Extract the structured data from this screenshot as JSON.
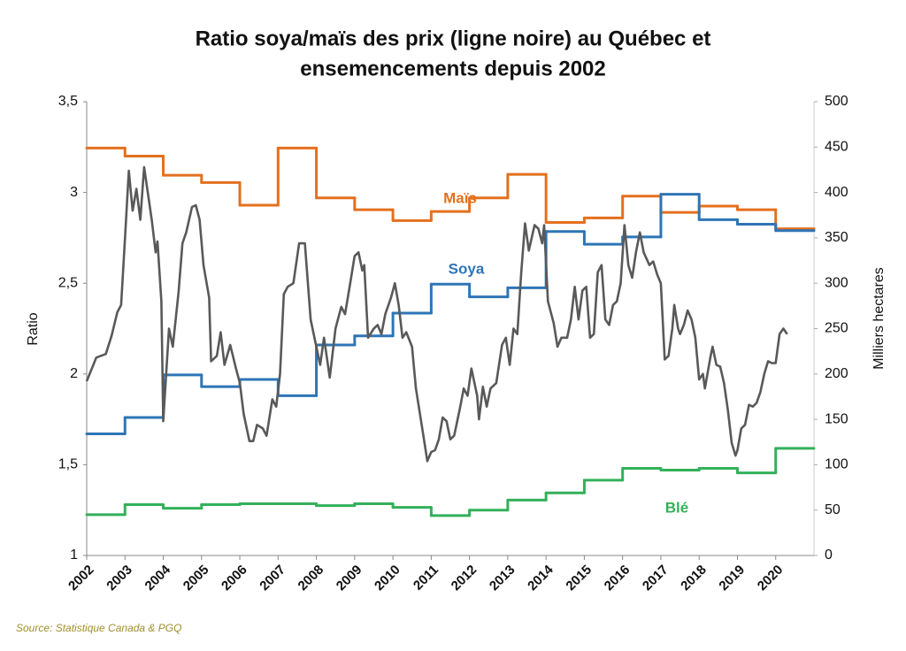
{
  "chart_data": {
    "type": "line",
    "title": [
      "Ratio soya/maïs des prix (ligne noire) au Québec et",
      "ensemencements depuis 2002"
    ],
    "y_label": "Ratio",
    "y2_label": "Milliers hectares",
    "source": "Source: Statistique Canada & PGQ",
    "xlim": [
      2002,
      2021
    ],
    "xticks": [
      2002,
      2003,
      2004,
      2005,
      2006,
      2007,
      2008,
      2009,
      2010,
      2011,
      2012,
      2013,
      2014,
      2015,
      2016,
      2017,
      2018,
      2019,
      2020
    ],
    "ylim": [
      1,
      3.5
    ],
    "yticks": [
      1,
      {
        "value": 1.5,
        "label": "1,5"
      },
      2,
      {
        "value": 2.5,
        "label": "2,5"
      },
      3,
      {
        "value": 3.5,
        "label": "3,5"
      }
    ],
    "y2lim": [
      0,
      500
    ],
    "y2ticks": [
      0,
      50,
      100,
      150,
      200,
      250,
      300,
      350,
      400,
      450,
      500
    ],
    "grid": false,
    "series": [
      {
        "color": "#595959",
        "x": [
          2002.0,
          2002.25,
          2002.5,
          2002.65,
          2002.8,
          2002.9,
          2003.0,
          2003.1,
          2003.2,
          2003.3,
          2003.4,
          2003.5,
          2003.7,
          2003.8,
          2003.85,
          2003.95,
          2004.0,
          2004.15,
          2004.25,
          2004.4,
          2004.5,
          2004.6,
          2004.75,
          2004.85,
          2004.95,
          2005.05,
          2005.2,
          2005.25,
          2005.4,
          2005.5,
          2005.6,
          2005.75,
          2005.9,
          2006.0,
          2006.1,
          2006.25,
          2006.35,
          2006.45,
          2006.6,
          2006.7,
          2006.85,
          2006.95,
          2007.05,
          2007.15,
          2007.25,
          2007.4,
          2007.55,
          2007.7,
          2007.85,
          2007.95,
          2008.1,
          2008.2,
          2008.35,
          2008.5,
          2008.65,
          2008.75,
          2008.9,
          2009.0,
          2009.1,
          2009.2,
          2009.25,
          2009.35,
          2009.5,
          2009.6,
          2009.7,
          2009.8,
          2009.95,
          2010.05,
          2010.15,
          2010.25,
          2010.35,
          2010.5,
          2010.6,
          2010.75,
          2010.9,
          2011.0,
          2011.1,
          2011.2,
          2011.3,
          2011.4,
          2011.5,
          2011.6,
          2011.75,
          2011.85,
          2011.95,
          2012.05,
          2012.2,
          2012.25,
          2012.35,
          2012.45,
          2012.55,
          2012.7,
          2012.85,
          2012.95,
          2013.05,
          2013.15,
          2013.25,
          2013.35,
          2013.45,
          2013.55,
          2013.7,
          2013.8,
          2013.9,
          2013.95,
          2014.05,
          2014.2,
          2014.3,
          2014.4,
          2014.55,
          2014.65,
          2014.75,
          2014.85,
          2014.95,
          2015.05,
          2015.15,
          2015.25,
          2015.35,
          2015.45,
          2015.55,
          2015.65,
          2015.75,
          2015.85,
          2015.95,
          2016.05,
          2016.15,
          2016.25,
          2016.35,
          2016.45,
          2016.55,
          2016.7,
          2016.8,
          2016.9,
          2017.0,
          2017.1,
          2017.2,
          2017.3,
          2017.35,
          2017.45,
          2017.5,
          2017.6,
          2017.7,
          2017.8,
          2017.9,
          2018.0,
          2018.1,
          2018.15,
          2018.3,
          2018.35,
          2018.45,
          2018.55,
          2018.65,
          2018.75,
          2018.85,
          2018.95,
          2019.0,
          2019.1,
          2019.2,
          2019.3,
          2019.4,
          2019.5,
          2019.6,
          2019.7,
          2019.8,
          2019.9,
          2020.0,
          2020.1,
          2020.2,
          2020.3
        ],
        "values": [
          1.96,
          2.09,
          2.11,
          2.21,
          2.34,
          2.38,
          2.75,
          3.12,
          2.9,
          3.02,
          2.85,
          3.14,
          2.85,
          2.67,
          2.73,
          2.4,
          1.74,
          2.25,
          2.15,
          2.45,
          2.72,
          2.78,
          2.92,
          2.93,
          2.85,
          2.6,
          2.42,
          2.07,
          2.1,
          2.23,
          2.05,
          2.16,
          2.03,
          1.95,
          1.78,
          1.63,
          1.63,
          1.72,
          1.7,
          1.66,
          1.86,
          1.82,
          2.0,
          2.44,
          2.48,
          2.5,
          2.72,
          2.72,
          2.3,
          2.2,
          2.05,
          2.2,
          1.98,
          2.25,
          2.37,
          2.33,
          2.52,
          2.65,
          2.67,
          2.57,
          2.6,
          2.2,
          2.25,
          2.27,
          2.22,
          2.33,
          2.42,
          2.5,
          2.38,
          2.2,
          2.23,
          2.15,
          1.92,
          1.72,
          1.52,
          1.57,
          1.58,
          1.64,
          1.76,
          1.74,
          1.64,
          1.66,
          1.81,
          1.92,
          1.88,
          2.03,
          1.88,
          1.75,
          1.93,
          1.82,
          1.92,
          1.95,
          2.16,
          2.2,
          2.05,
          2.25,
          2.22,
          2.55,
          2.83,
          2.68,
          2.82,
          2.8,
          2.72,
          2.82,
          2.4,
          2.28,
          2.15,
          2.2,
          2.2,
          2.3,
          2.48,
          2.3,
          2.46,
          2.48,
          2.2,
          2.22,
          2.56,
          2.6,
          2.3,
          2.27,
          2.38,
          2.4,
          2.5,
          2.82,
          2.6,
          2.53,
          2.67,
          2.78,
          2.67,
          2.6,
          2.62,
          2.55,
          2.5,
          2.08,
          2.1,
          2.25,
          2.38,
          2.25,
          2.22,
          2.27,
          2.35,
          2.3,
          2.2,
          1.97,
          2.0,
          1.92,
          2.1,
          2.15,
          2.05,
          2.04,
          1.95,
          1.8,
          1.62,
          1.55,
          1.58,
          1.7,
          1.72,
          1.83,
          1.82,
          1.84,
          1.9,
          2.0,
          2.07,
          2.06,
          2.06,
          2.22,
          2.25,
          2.22
        ]
      },
      {
        "name": "Maïs",
        "color": "#e4701e",
        "axis": "y2",
        "step": "post",
        "x": [
          2002,
          2003,
          2004,
          2005,
          2006,
          2007,
          2008,
          2009,
          2010,
          2011,
          2012,
          2013,
          2014,
          2015,
          2016,
          2017,
          2018,
          2019,
          2020
        ],
        "values": [
          449,
          440,
          419,
          411,
          386,
          449,
          394,
          381,
          369,
          379,
          394,
          420,
          367,
          372,
          396,
          378,
          385,
          381,
          360
        ]
      },
      {
        "name": "Soya",
        "color": "#2e75b6",
        "axis": "y2",
        "step": "post",
        "x": [
          2002,
          2003,
          2004,
          2005,
          2006,
          2007,
          2008,
          2009,
          2010,
          2011,
          2012,
          2013,
          2014,
          2015,
          2016,
          2017,
          2018,
          2019,
          2020
        ],
        "values": [
          134,
          152,
          199,
          186,
          194,
          176,
          232,
          242,
          267,
          299,
          285,
          295,
          357,
          343,
          351,
          398,
          370,
          365,
          358
        ]
      },
      {
        "name": "Blé",
        "color": "#33b05a",
        "axis": "y2",
        "step": "post",
        "x": [
          2002,
          2003,
          2004,
          2005,
          2006,
          2007,
          2008,
          2009,
          2010,
          2011,
          2012,
          2013,
          2014,
          2015,
          2016,
          2017,
          2018,
          2019,
          2020
        ],
        "values": [
          45,
          56,
          52,
          56,
          57,
          57,
          55,
          57,
          53,
          44,
          50,
          61,
          69,
          83,
          96,
          94,
          96,
          91,
          118
        ]
      }
    ]
  }
}
